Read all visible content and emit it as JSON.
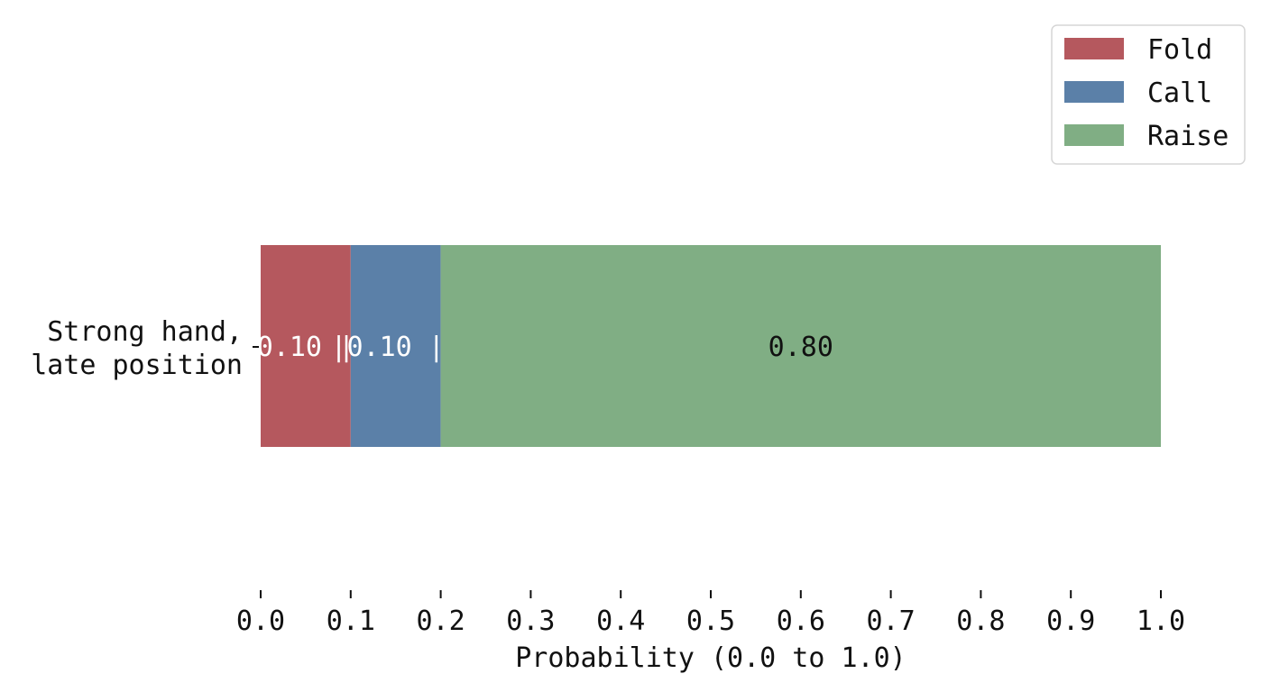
{
  "chart_data": {
    "type": "bar",
    "orientation": "horizontal",
    "stacked": true,
    "categories": [
      "Strong hand,\nlate position"
    ],
    "series": [
      {
        "name": "Fold",
        "values": [
          0.1
        ],
        "color": "#b5585e",
        "label": "0.10 |",
        "label_color": "#ffffff"
      },
      {
        "name": "Call",
        "values": [
          0.1
        ],
        "color": "#5b80a8",
        "label": "|0.10 ||",
        "label_color": "#ffffff"
      },
      {
        "name": "Raise",
        "values": [
          0.8
        ],
        "color": "#80ae84",
        "label": "0.80",
        "label_color": "#111111"
      }
    ],
    "xlabel": "Probability (0.0 to 1.0)",
    "ylabel": "",
    "title": "",
    "xlim": [
      0.0,
      1.0
    ],
    "xticks": [
      "0.0",
      "0.1",
      "0.2",
      "0.3",
      "0.4",
      "0.5",
      "0.6",
      "0.7",
      "0.8",
      "0.9",
      "1.0"
    ],
    "legend": {
      "position": "top-right",
      "entries": [
        "Fold",
        "Call",
        "Raise"
      ]
    },
    "grid": false
  }
}
